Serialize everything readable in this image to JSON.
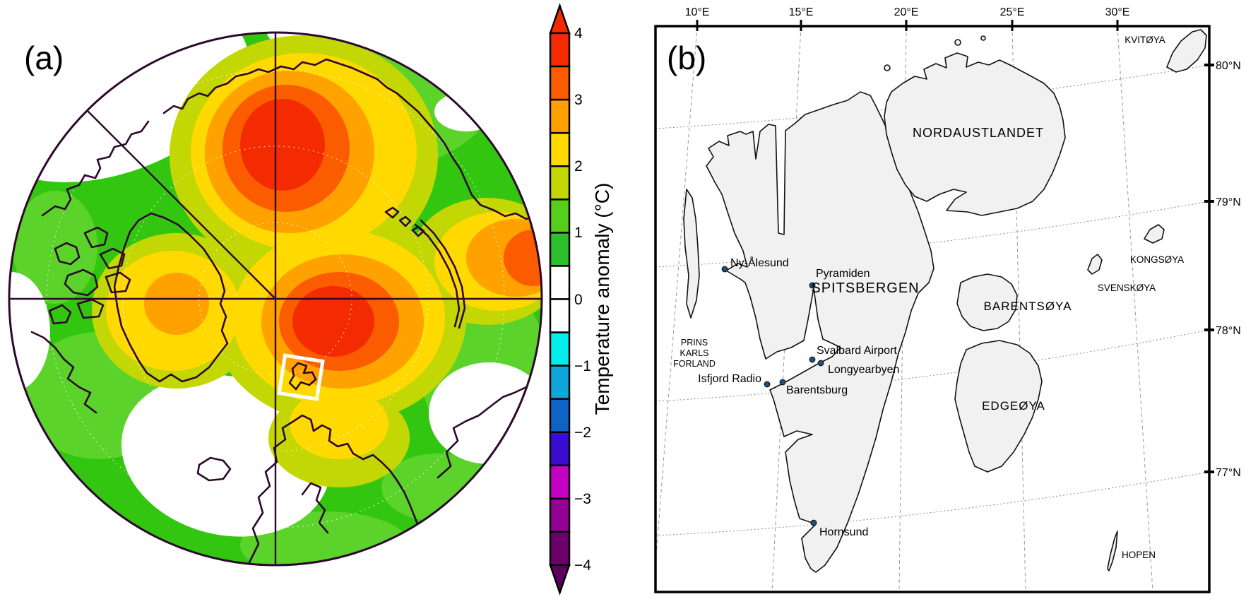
{
  "panel_a": {
    "label": "(a)",
    "colorbar": {
      "title": "Temperature anomaly (°C)",
      "ticks": [
        "4",
        "3",
        "2",
        "1",
        "0",
        "−1",
        "−2",
        "−3",
        "−4"
      ],
      "segment_colors_top_to_bottom": [
        "#F42B00",
        "#FB5C00",
        "#FFA200",
        "#FFD900",
        "#C3D704",
        "#55CE1C",
        "#2DC12D",
        "#FFFFFF",
        "#FFFFFF",
        "#00EDED",
        "#0FA6DC",
        "#0E63C4",
        "#3A0ED0",
        "#C400C4",
        "#930093",
        "#6B006B"
      ],
      "arrow_top_color": "#F42B00",
      "arrow_bottom_color": "#5C005E"
    },
    "map_colors": {
      "base_green": "#33C611",
      "light_green": "#5BD32B",
      "zero_white": "#FFFFFF",
      "warm_yellow_green": "#C3D704",
      "warm_yellow": "#FFD900",
      "warm_orange": "#FFA200",
      "warm_orange_red": "#FB5C00",
      "warm_red": "#F42B00",
      "coastline": "#2D082D",
      "highlight_box": "#FFFFFF"
    }
  },
  "panel_b": {
    "label": "(b)",
    "top_axis_ticks": [
      "10°E",
      "15°E",
      "20°E",
      "25°E",
      "30°E"
    ],
    "right_axis_ticks": [
      "80°N",
      "79°N",
      "78°N",
      "77°N"
    ],
    "islands": {
      "nordaustlandet": "NORDAUSTLANDET",
      "spitsbergen": "SPITSBERGEN",
      "barentsoya": "BARENTSØYA",
      "kongsoya": "KONGSØYA",
      "svenskoya": "SVENSKØYA",
      "edgeoya": "EDGEØYA",
      "kvitoya": "KVITØYA",
      "hopen": "HOPEN",
      "prins_karls_forland_lines": [
        "PRINS",
        "KARLS",
        "FORLAND"
      ]
    },
    "settlements": {
      "ny_alesund": "Ny-Ålesund",
      "pyramiden": "Pyramiden",
      "svalbard_airport": "Svalbard Airport",
      "longyearbyen": "Longyearbyen",
      "isfjord_radio": "Isfjord Radio",
      "barentsburg": "Barentsburg",
      "hornsund": "Hornsund"
    },
    "map_colors": {
      "land": "#F1F1F1",
      "outline": "#111111",
      "graticule": "#999999",
      "settlement_dot": "#1F4E79",
      "frame": "#000000"
    }
  }
}
